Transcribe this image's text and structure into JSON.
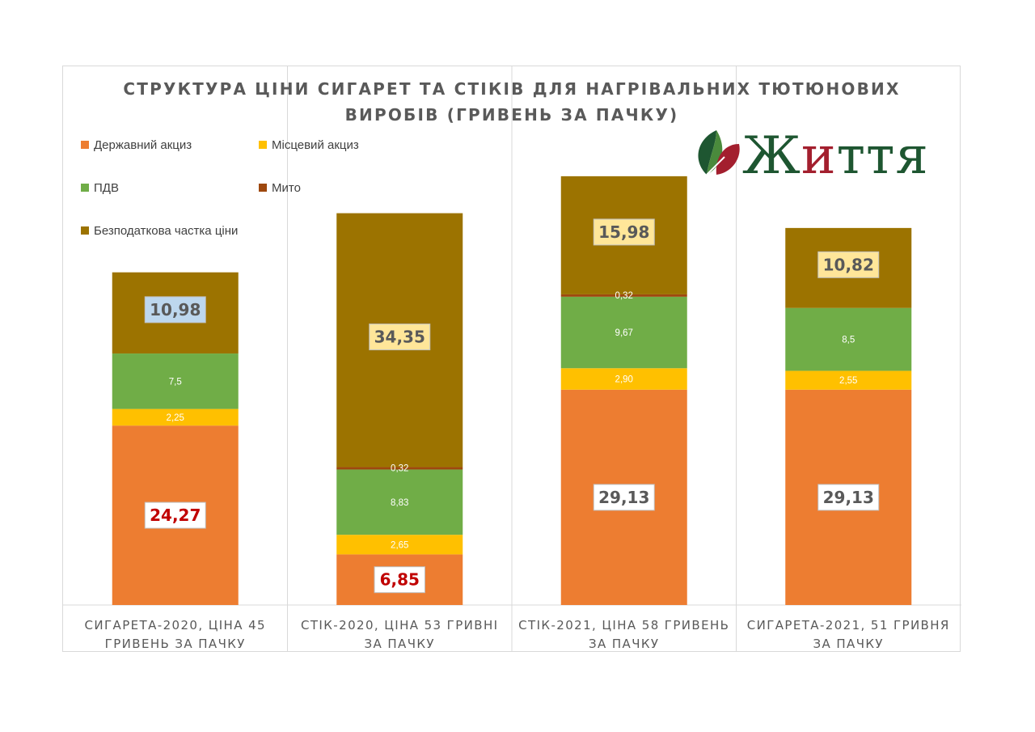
{
  "chart_data": {
    "type": "bar",
    "stacked": true,
    "title_lines": [
      "СТРУКТУРА ЦІНИ СИГАРЕТ ТА СТІКІВ ДЛЯ НАГРІВАЛЬНИХ ТЮТЮНОВИХ",
      "ВИРОБІВ (ГРИВЕНЬ ЗА ПАЧКУ)"
    ],
    "categories": [
      [
        "СИГАРЕТА-2020, ЦІНА 45",
        "ГРИВЕНЬ ЗА ПАЧКУ"
      ],
      [
        "СТІК-2020, ЦІНА 53 ГРИВНІ",
        "ЗА ПАЧКУ"
      ],
      [
        "СТІК-2021, ЦІНА 58 ГРИВЕНЬ",
        "ЗА ПАЧКУ"
      ],
      [
        "СИГАРЕТА-2021, 51 ГРИВНЯ",
        "ЗА ПАЧКУ"
      ]
    ],
    "ylim": [
      0,
      61
    ],
    "grid": false,
    "legend_position": "top-left",
    "series": [
      {
        "name": "Державний акциз",
        "color": "#ed7d31",
        "values": [
          24.27,
          6.85,
          29.13,
          29.13
        ],
        "labels": [
          "24,27",
          "6,85",
          "29,13",
          "29,13"
        ]
      },
      {
        "name": "Місцевий акциз",
        "color": "#ffc000",
        "values": [
          2.25,
          2.65,
          2.9,
          2.55
        ],
        "labels": [
          "2,25",
          "2,65",
          "2,90",
          "2,55"
        ]
      },
      {
        "name": "ПДВ",
        "color": "#70ad47",
        "values": [
          7.5,
          8.83,
          9.67,
          8.5
        ],
        "labels": [
          "7,5",
          "8,83",
          "9,67",
          "8,5"
        ]
      },
      {
        "name": "Мито",
        "color": "#9e480e",
        "values": [
          0,
          0.32,
          0.32,
          0
        ],
        "labels": [
          "",
          "0,32",
          "0,32",
          ""
        ]
      },
      {
        "name": "Безподаткова частка ціни",
        "color": "#9c7300",
        "values": [
          10.98,
          34.35,
          15.98,
          10.82
        ],
        "labels": [
          "10,98",
          "34,35",
          "15,98",
          "10,82"
        ]
      }
    ],
    "highlight_labels": {
      "excise": {
        "box_fill": "#ffffff",
        "text_colors": [
          "#c00000",
          "#c00000",
          "#595959",
          "#595959"
        ]
      },
      "untaxed": {
        "box_fills": [
          "#bdd7ee",
          "#ffe699",
          "#ffe699",
          "#ffe699"
        ],
        "text_color": "#595959"
      }
    }
  },
  "logo": {
    "text": "Життя",
    "text_color": "#1e5631",
    "accent_color": "#a31f2e",
    "leaf_dark": "#1e5631",
    "leaf_light": "#4a8a3c",
    "leaf_red": "#a31f2e"
  }
}
